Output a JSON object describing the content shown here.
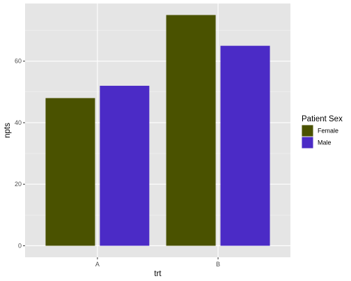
{
  "chart_data": {
    "type": "bar",
    "categories": [
      "A",
      "B"
    ],
    "series": [
      {
        "name": "Female",
        "values": [
          48,
          75
        ],
        "color": "#4a5200"
      },
      {
        "name": "Male",
        "values": [
          52,
          65
        ],
        "color": "#4b2bc6"
      }
    ],
    "xlabel": "trt",
    "ylabel": "npts",
    "ylim": [
      -3.75,
      78.75
    ],
    "yticks": [
      0,
      20,
      40,
      60
    ],
    "grid": true,
    "legend": {
      "title": "Patient Sex",
      "position": "right"
    },
    "colors": {
      "panel_background": "#e5e5e5",
      "grid_major": "#ffffff",
      "grid_minor": "#f2f2f2"
    }
  }
}
